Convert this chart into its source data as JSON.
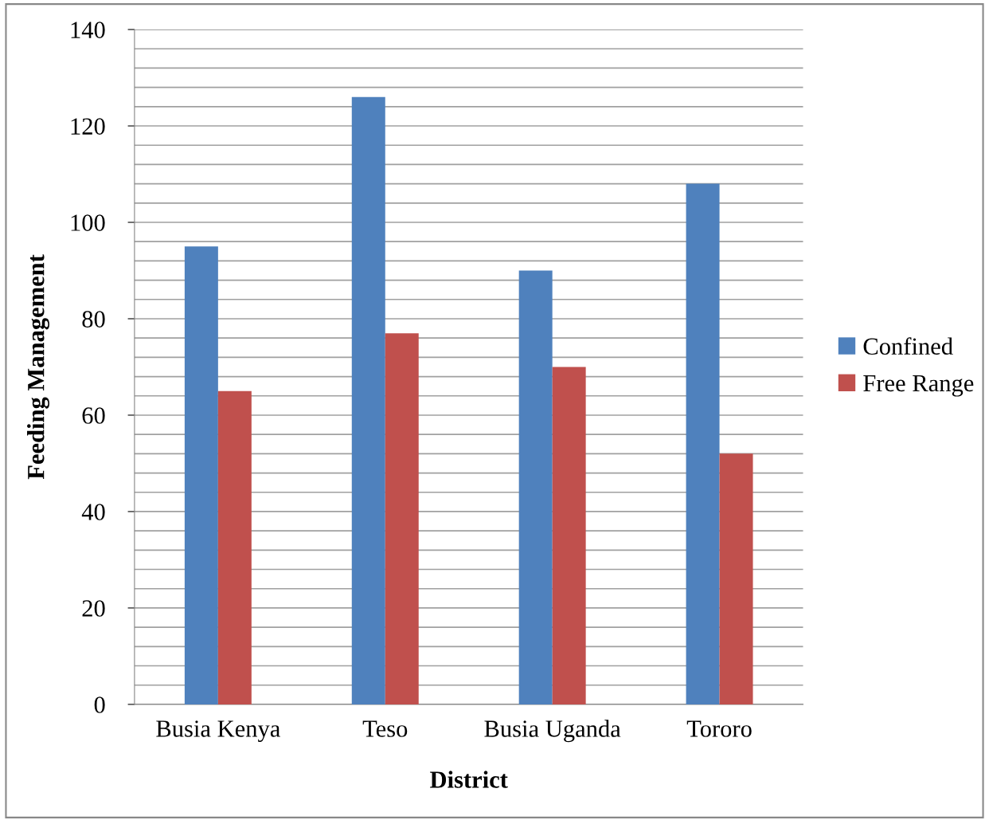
{
  "chart_data": {
    "type": "bar",
    "xlabel": "District",
    "ylabel": "Feeding Management",
    "categories": [
      "Busia Kenya",
      "Teso",
      "Busia Uganda",
      "Tororo"
    ],
    "series": [
      {
        "name": "Confined",
        "color": "#4f81bd",
        "values": [
          95,
          126,
          90,
          108
        ]
      },
      {
        "name": "Free Range",
        "color": "#c0504d",
        "values": [
          65,
          77,
          70,
          52
        ]
      }
    ],
    "ylim": [
      0,
      140
    ],
    "yticks": [
      0,
      {
        "value": 4,
        "label": null
      },
      {
        "value": 8,
        "label": null
      },
      {
        "value": 12,
        "label": null
      },
      {
        "value": 16,
        "label": null
      },
      20,
      {
        "value": 24,
        "label": null
      },
      {
        "value": 28,
        "label": null
      },
      {
        "value": 32,
        "label": null
      },
      {
        "value": 36,
        "label": null
      },
      40,
      {
        "value": 44,
        "label": null
      },
      {
        "value": 48,
        "label": null
      },
      {
        "value": 52,
        "label": null
      },
      {
        "value": 56,
        "label": null
      },
      60,
      {
        "value": 64,
        "label": null
      },
      {
        "value": 68,
        "label": null
      },
      {
        "value": 72,
        "label": null
      },
      {
        "value": 76,
        "label": null
      },
      80,
      {
        "value": 84,
        "label": null
      },
      {
        "value": 88,
        "label": null
      },
      {
        "value": 92,
        "label": null
      },
      {
        "value": 96,
        "label": null
      },
      100,
      {
        "value": 104,
        "label": null
      },
      {
        "value": 108,
        "label": null
      },
      {
        "value": 112,
        "label": null
      },
      {
        "value": 116,
        "label": null
      },
      120,
      {
        "value": 124,
        "label": null
      },
      {
        "value": 128,
        "label": null
      },
      {
        "value": 132,
        "label": null
      },
      {
        "value": 136,
        "label": null
      },
      140
    ],
    "grid": "y",
    "legend": "right"
  }
}
